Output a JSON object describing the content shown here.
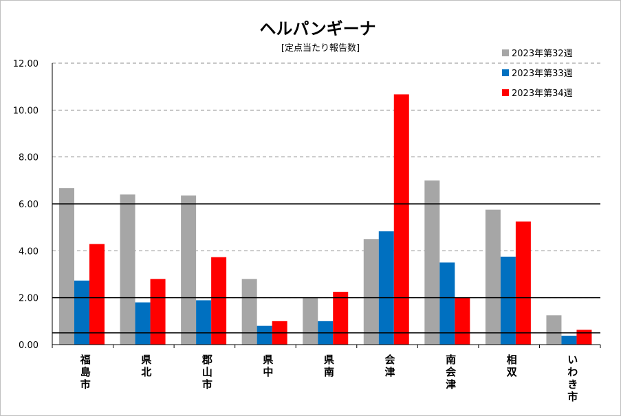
{
  "chart_data": {
    "type": "bar",
    "title": "ヘルパンギーナ",
    "subtitle": "[定点当たり報告数]",
    "categories": [
      "福島市",
      "県北",
      "郡山市",
      "県中",
      "県南",
      "会津",
      "南会津",
      "相双",
      "いわき市"
    ],
    "yticks": [
      "0.00",
      "2.00",
      "4.00",
      "6.00",
      "8.00",
      "10.00",
      "12.00"
    ],
    "ylim": [
      0,
      12
    ],
    "grid": "dashed",
    "legend_position": "top-right",
    "series": [
      {
        "name": "2023年第32週",
        "color": "#a6a6a6",
        "values": [
          6.67,
          6.4,
          6.36,
          2.8,
          2.0,
          4.5,
          7.0,
          5.75,
          1.25
        ]
      },
      {
        "name": "2023年第33週",
        "color": "#0070c0",
        "values": [
          2.73,
          1.8,
          1.89,
          0.8,
          1.0,
          4.83,
          3.5,
          3.75,
          0.38
        ]
      },
      {
        "name": "2023年第34週",
        "color": "#ff0000",
        "values": [
          4.29,
          2.8,
          3.73,
          1.0,
          2.25,
          10.67,
          2.0,
          5.25,
          0.63
        ]
      }
    ],
    "reference_lines": [
      6.0,
      2.0,
      0.5
    ]
  }
}
